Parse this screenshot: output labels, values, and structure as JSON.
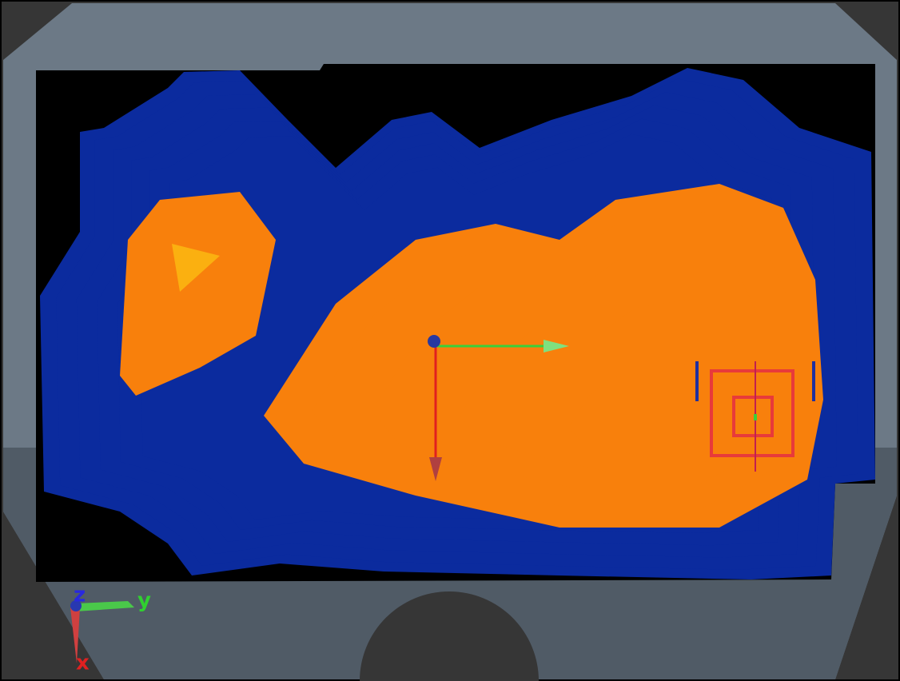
{
  "axes_gizmo": {
    "labels": [
      "z",
      "y",
      "x"
    ]
  }
}
